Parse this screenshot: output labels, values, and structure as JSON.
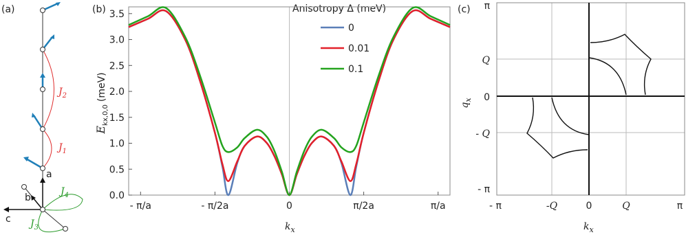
{
  "chart_data": {
    "type": "line",
    "panel_label": "(b)",
    "ylabel": {
      "main": "E",
      "sub": "kx,0,0",
      "unit": "(meV)"
    },
    "xlabel": {
      "main": "k",
      "sub": "x"
    },
    "legend_title": "Anisotropy Δ (meV)",
    "x": [
      -1.08,
      -0.95,
      -0.83,
      -0.7,
      -0.6,
      -0.5,
      -0.45,
      -0.41,
      -0.35,
      -0.3,
      -0.217,
      -0.15,
      -0.1,
      -0.05,
      0,
      0.05,
      0.1,
      0.15,
      0.217,
      0.3,
      0.35,
      0.41,
      0.45,
      0.5,
      0.6,
      0.7,
      0.83,
      0.95,
      1.08
    ],
    "series": [
      {
        "name": "0",
        "color": "#5b7fb8",
        "values": [
          3.24,
          3.4,
          3.55,
          3.0,
          2.2,
          1.2,
          0.55,
          0.0,
          0.62,
          0.95,
          1.13,
          1.0,
          0.75,
          0.4,
          0,
          0.4,
          0.75,
          1.0,
          1.13,
          0.95,
          0.62,
          0.0,
          0.55,
          1.2,
          2.2,
          3.0,
          3.55,
          3.4,
          3.24
        ]
      },
      {
        "name": "0.01",
        "color": "#e3202a",
        "values": [
          3.24,
          3.4,
          3.55,
          3.0,
          2.2,
          1.2,
          0.6,
          0.27,
          0.65,
          0.95,
          1.13,
          1.0,
          0.75,
          0.4,
          0,
          0.4,
          0.75,
          1.0,
          1.13,
          0.95,
          0.65,
          0.27,
          0.6,
          1.2,
          2.2,
          3.0,
          3.55,
          3.4,
          3.24
        ]
      },
      {
        "name": "0.1",
        "color": "#24a31e",
        "values": [
          3.28,
          3.45,
          3.61,
          3.05,
          2.3,
          1.4,
          0.95,
          0.83,
          0.92,
          1.1,
          1.26,
          1.12,
          0.85,
          0.45,
          0,
          0.45,
          0.85,
          1.12,
          1.26,
          1.1,
          0.92,
          0.83,
          0.95,
          1.4,
          2.3,
          3.05,
          3.61,
          3.45,
          3.28
        ]
      }
    ],
    "xlim": [
      -1.08,
      1.08
    ],
    "xticks": [
      {
        "value": -1,
        "label": "- π/a"
      },
      {
        "value": -0.5,
        "label": "- π/2a"
      },
      0,
      {
        "value": 0.5,
        "label": "π/2a"
      },
      {
        "value": 1,
        "label": "π/a"
      }
    ],
    "ylim": [
      0,
      3.63
    ],
    "yticks": [
      {
        "value": 0,
        "label": "0.0"
      },
      {
        "value": 0.5,
        "label": "0.5"
      },
      {
        "value": 1,
        "label": "1.0"
      },
      {
        "value": 1.5,
        "label": "1.5"
      },
      {
        "value": 2,
        "label": "2.0"
      },
      {
        "value": 2.5,
        "label": "2.5"
      },
      {
        "value": 3,
        "label": "3.0"
      },
      {
        "value": 3.5,
        "label": "3.5"
      }
    ]
  },
  "panel_a": {
    "label": "(a)",
    "j2": "J",
    "j2_sub": "2",
    "j1": "J",
    "j1_sub": "1",
    "j4": "J",
    "j4_sub": "4",
    "j3": "J",
    "j3_sub": "3",
    "axis_a": "a",
    "axis_b": "b",
    "axis_c": "c"
  },
  "panel_c": {
    "label": "(c)",
    "xticks": [
      "- π",
      "-Q",
      "0",
      "Q",
      "π"
    ],
    "yticks": [
      "π",
      "Q",
      "0",
      "- Q",
      "- π"
    ],
    "xlabel": {
      "main": "k",
      "sub": "x"
    },
    "ylabel": {
      "main": "q",
      "sub": "x"
    }
  }
}
